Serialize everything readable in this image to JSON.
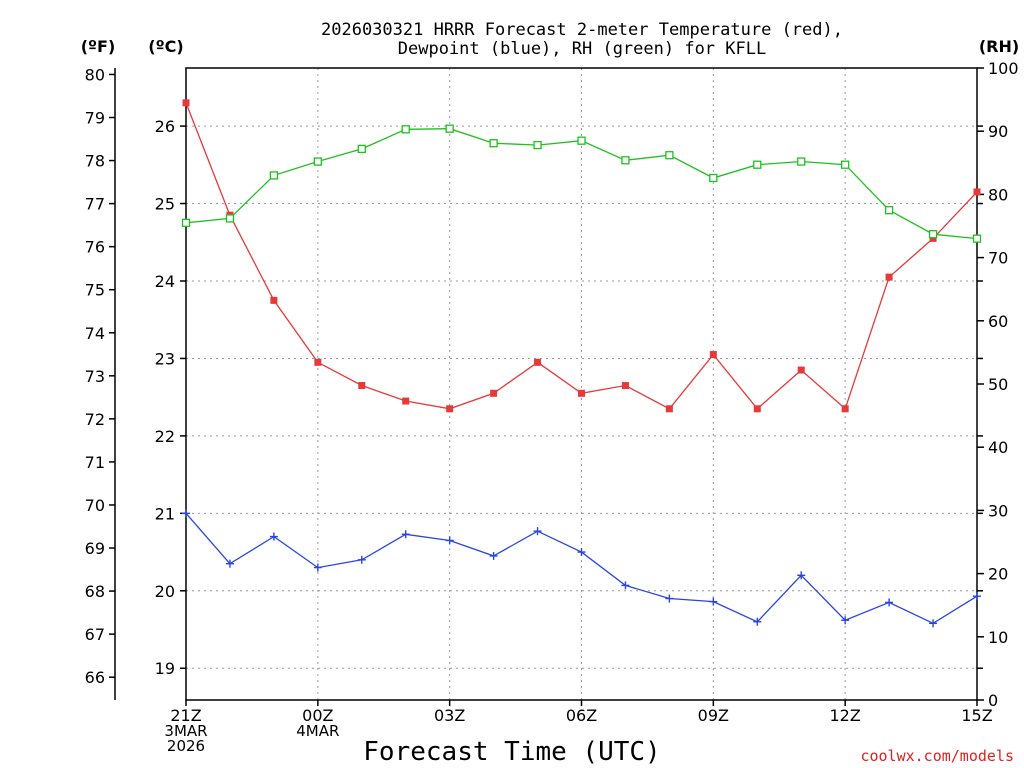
{
  "chart_data": {
    "type": "line",
    "title": [
      "2026030321 HRRR Forecast 2-meter Temperature (red),",
      "Dewpoint (blue), RH (green) for KFLL"
    ],
    "xlabel": "Forecast Time (UTC)",
    "credit": "coolwx.com/models",
    "unit_labels": {
      "fahrenheit": "(ºF)",
      "celsius": "(ºC)",
      "rh": "(RH)"
    },
    "x_hours": [
      0,
      1,
      2,
      3,
      4,
      5,
      6,
      7,
      8,
      9,
      10,
      11,
      12,
      13,
      14,
      15,
      16,
      17,
      18
    ],
    "xlim": [
      0,
      18
    ],
    "x_ticks": [
      {
        "hour": 0,
        "lines": [
          "21Z",
          "3MAR",
          "2026"
        ]
      },
      {
        "hour": 3,
        "lines": [
          "00Z",
          "4MAR"
        ]
      },
      {
        "hour": 6,
        "lines": [
          "03Z"
        ]
      },
      {
        "hour": 9,
        "lines": [
          "06Z"
        ]
      },
      {
        "hour": 12,
        "lines": [
          "09Z"
        ]
      },
      {
        "hour": 15,
        "lines": [
          "12Z"
        ]
      },
      {
        "hour": 18,
        "lines": [
          "15Z"
        ]
      }
    ],
    "celsius_axis": {
      "ylim": [
        18.59,
        26.75
      ],
      "ticks": [
        19,
        20,
        21,
        22,
        23,
        24,
        25,
        26
      ]
    },
    "fahrenheit_axis": {
      "ylim": [
        65.47,
        80.15
      ],
      "ticks": [
        66,
        67,
        68,
        69,
        70,
        71,
        72,
        73,
        74,
        75,
        76,
        77,
        78,
        79,
        80
      ]
    },
    "rh_axis": {
      "ylim": [
        0,
        100
      ],
      "ticks": [
        0,
        10,
        20,
        30,
        40,
        50,
        60,
        70,
        80,
        90,
        100
      ]
    },
    "series": [
      {
        "name": "Temperature",
        "axis": "celsius",
        "color": "#e8383a",
        "marker": "filled-square",
        "values": [
          26.3,
          24.85,
          23.75,
          22.95,
          22.65,
          22.45,
          22.35,
          22.55,
          22.95,
          22.55,
          22.65,
          22.35,
          23.05,
          22.35,
          22.85,
          22.35,
          24.05,
          24.55,
          25.15
        ]
      },
      {
        "name": "Dewpoint",
        "axis": "celsius",
        "color": "#2845e0",
        "marker": "plus",
        "values": [
          21.0,
          20.35,
          20.7,
          20.3,
          20.4,
          20.73,
          20.65,
          20.45,
          20.77,
          20.5,
          20.07,
          19.9,
          19.86,
          19.6,
          20.2,
          19.62,
          19.85,
          19.58,
          19.93
        ]
      },
      {
        "name": "RH",
        "axis": "rh",
        "color": "#20c020",
        "marker": "open-square",
        "values": [
          75.5,
          76.2,
          83.0,
          85.2,
          87.2,
          90.3,
          90.4,
          88.1,
          87.8,
          88.5,
          85.4,
          86.2,
          82.6,
          84.7,
          85.2,
          84.7,
          77.5,
          73.7,
          73.0
        ]
      }
    ]
  }
}
